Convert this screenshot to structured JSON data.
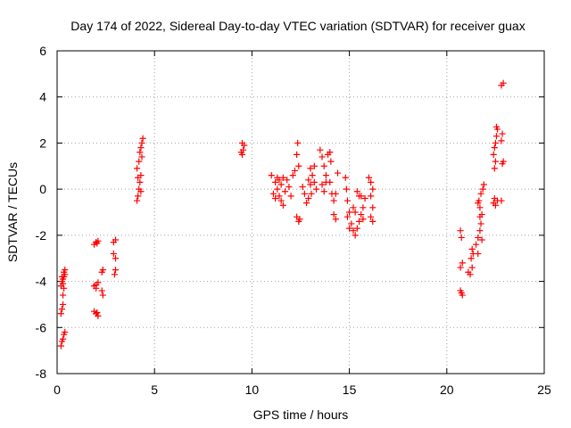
{
  "chart_data": {
    "type": "scatter",
    "title": "Day 174 of 2022, Sidereal Day-to-day VTEC variation (SDTVAR) for receiver guax",
    "xlabel": "GPS time / hours",
    "ylabel": "SDTVAR / TECUs",
    "xlim": [
      0,
      25
    ],
    "ylim": [
      -8,
      6
    ],
    "xticks": [
      "0",
      "5",
      "10",
      "15",
      "20",
      "25"
    ],
    "xtick_values": [
      0,
      5,
      10,
      15,
      20,
      25
    ],
    "yticks": [
      "-8",
      "-6",
      "-4",
      "-2",
      "0",
      "2",
      "4",
      "6"
    ],
    "ytick_values": [
      -8,
      -6,
      -4,
      -2,
      0,
      2,
      4,
      6
    ],
    "grid": true,
    "marker": "+",
    "color": "#ff0000",
    "series": [
      {
        "name": "SDTVAR",
        "points": [
          [
            0.2,
            -6.8
          ],
          [
            0.25,
            -6.6
          ],
          [
            0.3,
            -6.5
          ],
          [
            0.35,
            -6.3
          ],
          [
            0.4,
            -6.2
          ],
          [
            0.2,
            -5.4
          ],
          [
            0.25,
            -5.2
          ],
          [
            0.3,
            -5.0
          ],
          [
            0.3,
            -4.6
          ],
          [
            0.35,
            -4.3
          ],
          [
            0.2,
            -4.2
          ],
          [
            0.25,
            -4.0
          ],
          [
            0.3,
            -3.9
          ],
          [
            0.35,
            -3.8
          ],
          [
            0.4,
            -3.7
          ],
          [
            0.35,
            -3.6
          ],
          [
            0.4,
            -3.5
          ],
          [
            0.3,
            -4.1
          ],
          [
            0.25,
            -3.8
          ],
          [
            1.9,
            -2.4
          ],
          [
            2.0,
            -2.3
          ],
          [
            2.1,
            -2.25
          ],
          [
            2.05,
            -2.35
          ],
          [
            1.9,
            -4.2
          ],
          [
            2.0,
            -4.15
          ],
          [
            2.1,
            -4.05
          ],
          [
            2.0,
            -4.3
          ],
          [
            1.9,
            -5.3
          ],
          [
            2.0,
            -5.4
          ],
          [
            2.1,
            -5.5
          ],
          [
            2.05,
            -5.35
          ],
          [
            2.3,
            -3.6
          ],
          [
            2.35,
            -3.5
          ],
          [
            2.3,
            -4.4
          ],
          [
            2.35,
            -4.6
          ],
          [
            2.9,
            -2.3
          ],
          [
            3.0,
            -2.2
          ],
          [
            2.9,
            -2.8
          ],
          [
            3.0,
            -3.0
          ],
          [
            3.0,
            -3.5
          ],
          [
            2.95,
            -3.7
          ],
          [
            4.1,
            -0.5
          ],
          [
            4.15,
            -0.3
          ],
          [
            4.2,
            0.0
          ],
          [
            4.25,
            0.3
          ],
          [
            4.3,
            0.6
          ],
          [
            4.1,
            0.9
          ],
          [
            4.2,
            1.2
          ],
          [
            4.25,
            1.6
          ],
          [
            4.3,
            1.8
          ],
          [
            4.35,
            2.0
          ],
          [
            4.4,
            2.2
          ],
          [
            4.15,
            0.5
          ],
          [
            4.3,
            -0.1
          ],
          [
            4.35,
            1.4
          ],
          [
            9.5,
            1.5
          ],
          [
            9.55,
            1.7
          ],
          [
            9.6,
            1.9
          ],
          [
            9.5,
            2.0
          ],
          [
            9.45,
            1.6
          ],
          [
            11.0,
            0.6
          ],
          [
            11.2,
            0.3
          ],
          [
            11.3,
            0.0
          ],
          [
            11.4,
            -0.3
          ],
          [
            11.5,
            -0.5
          ],
          [
            11.6,
            -0.7
          ],
          [
            11.2,
            -0.4
          ],
          [
            11.1,
            -0.2
          ],
          [
            11.3,
            0.5
          ],
          [
            11.5,
            0.2
          ],
          [
            11.7,
            -0.1
          ],
          [
            11.8,
            0.4
          ],
          [
            11.9,
            0.1
          ],
          [
            12.0,
            -0.3
          ],
          [
            12.1,
            0.6
          ],
          [
            12.2,
            0.8
          ],
          [
            11.6,
            0.5
          ],
          [
            11.4,
            0.4
          ],
          [
            12.3,
            1.5
          ],
          [
            12.35,
            2.0
          ],
          [
            12.4,
            1.0
          ],
          [
            12.3,
            -1.2
          ],
          [
            12.4,
            -1.4
          ],
          [
            12.45,
            -1.3
          ],
          [
            12.6,
            0.1
          ],
          [
            12.7,
            -0.2
          ],
          [
            12.8,
            -0.6
          ],
          [
            12.9,
            -0.4
          ],
          [
            13.0,
            0.2
          ],
          [
            13.1,
            0.6
          ],
          [
            13.2,
            1.0
          ],
          [
            13.0,
            0.9
          ],
          [
            12.9,
            0.4
          ],
          [
            13.05,
            -0.2
          ],
          [
            13.2,
            0.3
          ],
          [
            13.3,
            0.0
          ],
          [
            13.5,
            1.7
          ],
          [
            13.6,
            1.4
          ],
          [
            13.7,
            1.0
          ],
          [
            13.8,
            0.6
          ],
          [
            13.6,
            0.2
          ],
          [
            13.7,
            -0.1
          ],
          [
            13.8,
            0.3
          ],
          [
            13.9,
            1.5
          ],
          [
            14.0,
            1.6
          ],
          [
            14.05,
            1.2
          ],
          [
            14.0,
            0.3
          ],
          [
            14.1,
            -0.2
          ],
          [
            14.2,
            -0.5
          ],
          [
            14.3,
            -0.2
          ],
          [
            14.4,
            0.7
          ],
          [
            14.8,
            0.5
          ],
          [
            14.85,
            0.0
          ],
          [
            14.9,
            -0.5
          ],
          [
            15.0,
            -1.0
          ],
          [
            15.1,
            -1.5
          ],
          [
            15.2,
            -1.8
          ],
          [
            15.3,
            -2.0
          ],
          [
            15.4,
            -1.7
          ],
          [
            15.5,
            -1.4
          ],
          [
            15.6,
            -1.1
          ],
          [
            15.7,
            -0.8
          ],
          [
            15.5,
            -0.3
          ],
          [
            15.4,
            -0.1
          ],
          [
            15.6,
            -0.3
          ],
          [
            15.8,
            -0.4
          ],
          [
            15.3,
            -1.0
          ],
          [
            15.2,
            -0.8
          ],
          [
            15.0,
            -1.7
          ],
          [
            15.7,
            -1.3
          ],
          [
            14.2,
            -1.1
          ],
          [
            14.3,
            -1.3
          ],
          [
            14.9,
            -1.2
          ],
          [
            16.0,
            0.5
          ],
          [
            16.1,
            0.3
          ],
          [
            16.2,
            0.0
          ],
          [
            16.1,
            -0.3
          ],
          [
            16.2,
            -0.8
          ],
          [
            16.1,
            -1.2
          ],
          [
            16.2,
            -1.4
          ],
          [
            20.7,
            -1.8
          ],
          [
            20.75,
            -2.1
          ],
          [
            20.7,
            -4.4
          ],
          [
            20.75,
            -4.5
          ],
          [
            20.8,
            -4.6
          ],
          [
            20.7,
            -3.4
          ],
          [
            20.8,
            -3.2
          ],
          [
            21.1,
            -3.6
          ],
          [
            21.2,
            -3.7
          ],
          [
            21.3,
            -3.4
          ],
          [
            21.25,
            -3.0
          ],
          [
            21.35,
            -2.8
          ],
          [
            21.3,
            -2.6
          ],
          [
            21.5,
            -2.4
          ],
          [
            21.6,
            -2.1
          ],
          [
            21.7,
            -1.8
          ],
          [
            21.75,
            -1.5
          ],
          [
            21.8,
            -1.1
          ],
          [
            21.7,
            -0.8
          ],
          [
            21.65,
            -0.5
          ],
          [
            21.75,
            -0.2
          ],
          [
            21.85,
            0.0
          ],
          [
            21.9,
            0.2
          ],
          [
            21.8,
            -2.2
          ],
          [
            21.6,
            -2.8
          ],
          [
            21.7,
            -1.2
          ],
          [
            21.6,
            -0.6
          ],
          [
            22.4,
            -0.6
          ],
          [
            22.5,
            -0.7
          ],
          [
            22.6,
            -0.5
          ],
          [
            22.45,
            -0.4
          ],
          [
            22.4,
            1.5
          ],
          [
            22.45,
            1.8
          ],
          [
            22.5,
            2.0
          ],
          [
            22.55,
            2.3
          ],
          [
            22.6,
            2.6
          ],
          [
            22.5,
            1.2
          ],
          [
            22.45,
            0.9
          ],
          [
            22.55,
            2.7
          ],
          [
            22.8,
            -0.5
          ],
          [
            22.85,
            1.1
          ],
          [
            22.9,
            1.2
          ],
          [
            22.8,
            2.1
          ],
          [
            22.85,
            2.4
          ],
          [
            22.8,
            4.5
          ],
          [
            22.9,
            4.6
          ]
        ]
      }
    ]
  }
}
